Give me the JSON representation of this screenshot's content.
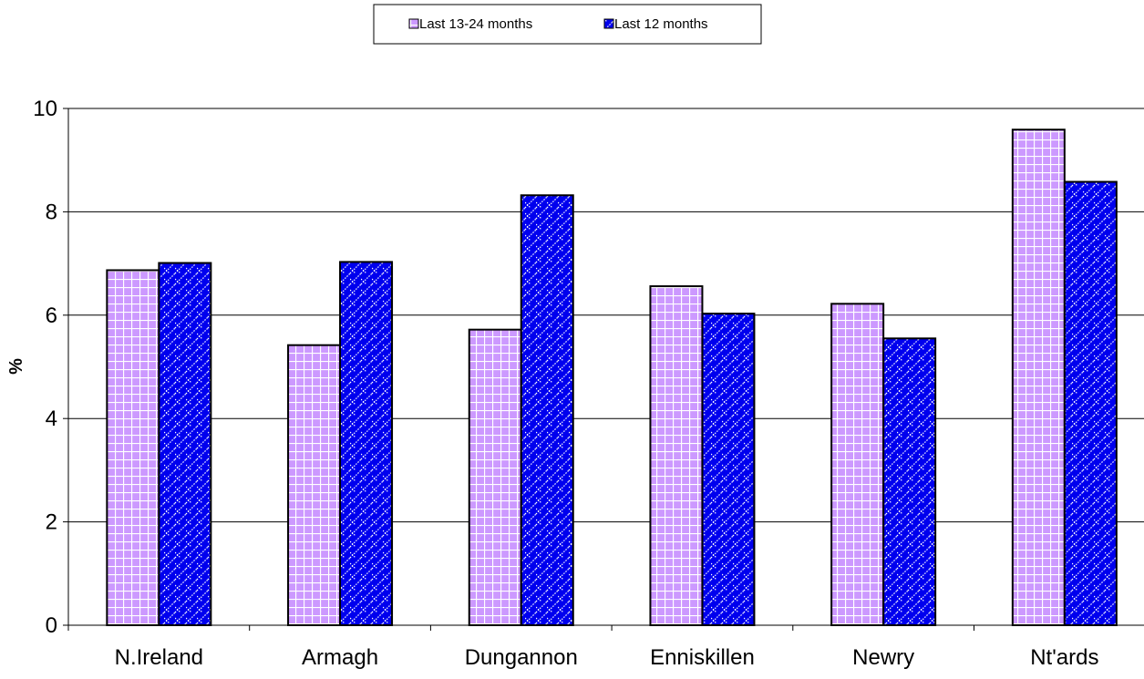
{
  "chart_data": {
    "type": "bar",
    "categories": [
      "N.Ireland",
      "Armagh",
      "Dungannon",
      "Enniskillen",
      "Newry",
      "Nt'ards"
    ],
    "series": [
      {
        "name": "Last 13-24 months",
        "values": [
          6.87,
          5.42,
          5.72,
          6.56,
          6.22,
          9.59
        ],
        "color": "#cc99ff",
        "pattern": "grid"
      },
      {
        "name": "Last 12 months",
        "values": [
          7.01,
          7.03,
          8.32,
          6.03,
          5.55,
          8.58
        ],
        "color": "#0000ee",
        "pattern": "diagonal-dotted"
      }
    ],
    "xlabel": "",
    "ylabel": "%",
    "ylim": [
      0,
      10
    ],
    "yticks": [
      "0",
      "2",
      "4",
      "6",
      "8",
      "10"
    ],
    "grid": true,
    "legend_position": "top-center"
  }
}
